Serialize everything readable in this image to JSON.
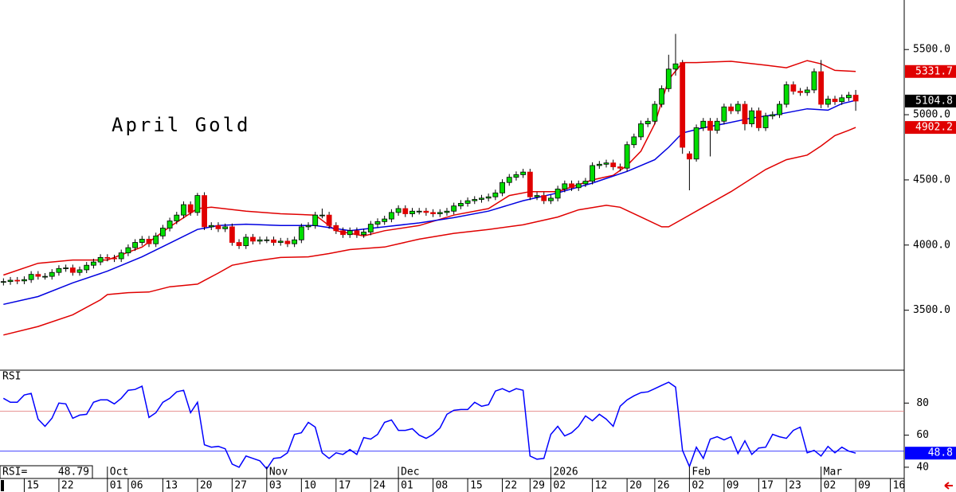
{
  "chart_data": [
    {
      "type": "candlestick",
      "title": "April Gold",
      "xlim": [
        -0.5,
        130
      ],
      "ylim": [
        3040,
        5880
      ],
      "yticks": [
        {
          "value": 3500,
          "label": "3500.0"
        },
        {
          "value": 4000,
          "label": "4000.0"
        },
        {
          "value": 4500,
          "label": "4500.0"
        },
        {
          "value": 5000,
          "label": "5000.0"
        },
        {
          "value": 5500,
          "label": "5500.0"
        }
      ],
      "up_color": "#00dd00",
      "down_color": "#e00000",
      "open": [
        3715,
        3720,
        3730,
        3725,
        3735,
        3775,
        3760,
        3760,
        3790,
        3820,
        3825,
        3790,
        3810,
        3845,
        3870,
        3905,
        3900,
        3895,
        3940,
        3980,
        4020,
        4045,
        4010,
        4070,
        4130,
        4185,
        4230,
        4310,
        4250,
        4380,
        4140,
        4150,
        4125,
        4140,
        4020,
        3995,
        4060,
        4030,
        4040,
        4040,
        4020,
        4030,
        4010,
        4040,
        4140,
        4150,
        4230,
        4230,
        4150,
        4110,
        4080,
        4110,
        4080,
        4100,
        4160,
        4180,
        4200,
        4250,
        4280,
        4240,
        4260,
        4260,
        4250,
        4240,
        4250,
        4260,
        4300,
        4320,
        4340,
        4350,
        4360,
        4370,
        4400,
        4480,
        4520,
        4540,
        4560,
        4370,
        4380,
        4340,
        4360,
        4430,
        4470,
        4440,
        4470,
        4490,
        4610,
        4620,
        4630,
        4600,
        4590,
        4770,
        4830,
        4930,
        4950,
        5080,
        5200,
        5350,
        5400,
        4700,
        4660,
        4900,
        4950,
        4880,
        4950,
        5060,
        5030,
        5080,
        4930,
        5030,
        4900,
        4990,
        5000,
        5080,
        5230,
        5180,
        5170,
        5190,
        5330,
        5080,
        5120,
        5100,
        5130,
        5150
      ],
      "high": [
        3745,
        3755,
        3755,
        3760,
        3800,
        3800,
        3785,
        3815,
        3845,
        3850,
        3850,
        3835,
        3870,
        3895,
        3930,
        3930,
        3925,
        3965,
        4005,
        4045,
        4070,
        4070,
        4095,
        4155,
        4210,
        4255,
        4335,
        4335,
        4400,
        4405,
        4175,
        4175,
        4165,
        4165,
        4045,
        4085,
        4085,
        4065,
        4065,
        4065,
        4055,
        4055,
        4065,
        4165,
        4175,
        4255,
        4280,
        4255,
        4175,
        4135,
        4135,
        4135,
        4125,
        4185,
        4205,
        4225,
        4275,
        4305,
        4305,
        4285,
        4285,
        4285,
        4275,
        4275,
        4285,
        4325,
        4345,
        4365,
        4375,
        4385,
        4395,
        4425,
        4505,
        4545,
        4565,
        4585,
        4585,
        4405,
        4405,
        4385,
        4455,
        4495,
        4495,
        4495,
        4515,
        4635,
        4645,
        4655,
        4655,
        4625,
        4795,
        4855,
        4955,
        4975,
        5105,
        5225,
        5460,
        5620,
        5420,
        4720,
        4925,
        4975,
        4975,
        4975,
        5085,
        5085,
        5105,
        5105,
        5055,
        5055,
        5015,
        5025,
        5105,
        5255,
        5255,
        5205,
        5215,
        5355,
        5420,
        5145,
        5145,
        5155,
        5175,
        5190
      ],
      "low": [
        3690,
        3695,
        3700,
        3700,
        3710,
        3735,
        3735,
        3735,
        3765,
        3795,
        3765,
        3765,
        3785,
        3820,
        3845,
        3875,
        3870,
        3870,
        3915,
        3955,
        3995,
        3985,
        3985,
        4045,
        4105,
        4160,
        4205,
        4225,
        4225,
        4115,
        4115,
        4100,
        4100,
        3995,
        3970,
        3970,
        4005,
        4005,
        4015,
        3995,
        3995,
        3985,
        3985,
        4015,
        4115,
        4125,
        4205,
        4125,
        4085,
        4055,
        4055,
        4055,
        4055,
        4075,
        4135,
        4155,
        4175,
        4225,
        4215,
        4215,
        4235,
        4225,
        4215,
        4215,
        4225,
        4235,
        4275,
        4295,
        4315,
        4325,
        4335,
        4345,
        4375,
        4455,
        4495,
        4515,
        4345,
        4345,
        4315,
        4315,
        4335,
        4405,
        4415,
        4415,
        4445,
        4465,
        4585,
        4595,
        4575,
        4565,
        4565,
        4745,
        4805,
        4905,
        4925,
        5055,
        5175,
        5300,
        4700,
        4420,
        4640,
        4875,
        4680,
        4855,
        4925,
        5005,
        5005,
        4880,
        4905,
        4875,
        4875,
        4965,
        4975,
        5055,
        5155,
        5145,
        5145,
        5165,
        5050,
        5055,
        5075,
        5075,
        5105,
        5030
      ],
      "close": [
        3720,
        3730,
        3725,
        3735,
        3775,
        3760,
        3760,
        3790,
        3820,
        3825,
        3790,
        3810,
        3845,
        3870,
        3905,
        3900,
        3895,
        3940,
        3980,
        4020,
        4045,
        4010,
        4070,
        4130,
        4185,
        4230,
        4310,
        4250,
        4380,
        4140,
        4150,
        4125,
        4140,
        4020,
        3995,
        4060,
        4030,
        4040,
        4040,
        4020,
        4030,
        4010,
        4040,
        4140,
        4150,
        4230,
        4230,
        4150,
        4110,
        4080,
        4110,
        4080,
        4100,
        4160,
        4180,
        4200,
        4250,
        4280,
        4240,
        4260,
        4260,
        4250,
        4240,
        4250,
        4260,
        4300,
        4320,
        4340,
        4350,
        4360,
        4370,
        4400,
        4480,
        4520,
        4540,
        4560,
        4370,
        4380,
        4340,
        4360,
        4430,
        4470,
        4440,
        4470,
        4490,
        4610,
        4620,
        4630,
        4600,
        4590,
        4770,
        4830,
        4930,
        4950,
        5080,
        5200,
        5350,
        5390,
        4750,
        4660,
        4900,
        4950,
        4880,
        4950,
        5060,
        5030,
        5080,
        4930,
        5030,
        4900,
        4990,
        5000,
        5080,
        5230,
        5180,
        5170,
        5190,
        5330,
        5080,
        5120,
        5100,
        5130,
        5150,
        5104.8
      ],
      "close_tag_color": "#000000",
      "bands": [
        {
          "color": "#e00000",
          "x": [
            0,
            5,
            10,
            15,
            20,
            24,
            28,
            30,
            35,
            40,
            45,
            48,
            52,
            55,
            60,
            65,
            70,
            73,
            76,
            80,
            85,
            88,
            90,
            92,
            94,
            96,
            98,
            100,
            105,
            110,
            113,
            116,
            118,
            120,
            123
          ],
          "values": [
            3770,
            3860,
            3885,
            3885,
            3985,
            4140,
            4280,
            4290,
            4260,
            4240,
            4230,
            4110,
            4070,
            4110,
            4150,
            4230,
            4280,
            4380,
            4410,
            4410,
            4500,
            4535,
            4610,
            4720,
            4930,
            5270,
            5400,
            5400,
            5410,
            5380,
            5360,
            5415,
            5390,
            5340,
            5331.7
          ]
        },
        {
          "color": "#0000e0",
          "x": [
            0,
            5,
            10,
            15,
            20,
            24,
            28,
            31,
            35,
            40,
            45,
            50,
            55,
            60,
            65,
            70,
            75,
            80,
            85,
            90,
            94,
            96,
            98,
            101,
            104,
            108,
            112,
            116,
            119,
            121,
            123
          ],
          "values": [
            3545,
            3605,
            3710,
            3800,
            3910,
            4015,
            4120,
            4150,
            4160,
            4150,
            4150,
            4110,
            4140,
            4170,
            4210,
            4260,
            4340,
            4400,
            4475,
            4565,
            4655,
            4750,
            4860,
            4900,
            4930,
            4975,
            5005,
            5045,
            5035,
            5085,
            5110
          ]
        },
        {
          "color": "#e00000",
          "x": [
            0,
            5,
            10,
            14,
            15,
            18,
            21,
            24,
            28,
            31,
            33,
            36,
            40,
            44,
            47,
            50,
            55,
            60,
            65,
            70,
            75,
            80,
            83,
            87,
            89,
            92,
            95,
            96,
            98,
            101,
            105,
            110,
            113,
            116,
            118,
            120,
            122,
            123
          ],
          "values": [
            3310,
            3375,
            3465,
            3580,
            3620,
            3635,
            3640,
            3680,
            3700,
            3785,
            3845,
            3875,
            3905,
            3910,
            3935,
            3965,
            3985,
            4045,
            4090,
            4120,
            4155,
            4215,
            4270,
            4305,
            4290,
            4215,
            4140,
            4140,
            4200,
            4290,
            4410,
            4580,
            4655,
            4690,
            4760,
            4840,
            4880,
            4902.2
          ]
        }
      ]
    },
    {
      "type": "line",
      "title": "RSI",
      "readout": "RSI=",
      "color": "#0000ff",
      "xlim": [
        -0.5,
        130
      ],
      "ylim": [
        33,
        100.5
      ],
      "yticks": [
        40,
        60,
        80
      ],
      "values": [
        83,
        80.5,
        80.5,
        85,
        86,
        70,
        65.5,
        70.5,
        80,
        79.5,
        70.5,
        72.5,
        73,
        80.5,
        82,
        82,
        79.5,
        83,
        88,
        88.5,
        90.5,
        71,
        74,
        80.5,
        83,
        87,
        88,
        74,
        80.5,
        54,
        52.5,
        53,
        51.5,
        42,
        40,
        47,
        45.5,
        44,
        39,
        45.5,
        46,
        49,
        60.5,
        61.5,
        68,
        65,
        49,
        45.5,
        49,
        48,
        51,
        48,
        58.5,
        57.5,
        60.5,
        68,
        69.5,
        63,
        63,
        64,
        60,
        58,
        60.5,
        64.5,
        73,
        75.5,
        76,
        76,
        80.5,
        78,
        79,
        87.5,
        89,
        87,
        89,
        88,
        47,
        45,
        45.5,
        60.5,
        65.5,
        59.5,
        61.5,
        65.5,
        72,
        69,
        73,
        70,
        65.5,
        78,
        82,
        84.5,
        86.5,
        87,
        89,
        91,
        93,
        90,
        50.5,
        40.5,
        52.5,
        45.5,
        57.5,
        59,
        57,
        59,
        48.5,
        56.5,
        48,
        52,
        52.5,
        60.5,
        59,
        58,
        63,
        65,
        49,
        50.5,
        47,
        53,
        49,
        52.5,
        50,
        48.79
      ],
      "last_value_label": "48.8",
      "levels": [
        {
          "value": 75,
          "color": "#e07070"
        },
        {
          "value": 50,
          "color": "#0000ff"
        }
      ],
      "xticks": [
        {
          "value": 3,
          "label": "15"
        },
        {
          "value": 8,
          "label": "22"
        },
        {
          "value": 15,
          "label": "01"
        },
        {
          "value": 18,
          "label": "06"
        },
        {
          "value": 23,
          "label": "13"
        },
        {
          "value": 28,
          "label": "20"
        },
        {
          "value": 33,
          "label": "27"
        },
        {
          "value": 38,
          "label": "03"
        },
        {
          "value": 43,
          "label": "10"
        },
        {
          "value": 48,
          "label": "17"
        },
        {
          "value": 53,
          "label": "24"
        },
        {
          "value": 57,
          "label": "01"
        },
        {
          "value": 62,
          "label": "08"
        },
        {
          "value": 67,
          "label": "15"
        },
        {
          "value": 72,
          "label": "22"
        },
        {
          "value": 76,
          "label": "29"
        },
        {
          "value": 79,
          "label": "02"
        },
        {
          "value": 85,
          "label": "12"
        },
        {
          "value": 90,
          "label": "20"
        },
        {
          "value": 94,
          "label": "26"
        },
        {
          "value": 99,
          "label": "02"
        },
        {
          "value": 104,
          "label": "09"
        },
        {
          "value": 109,
          "label": "17"
        },
        {
          "value": 113,
          "label": "23"
        },
        {
          "value": 118,
          "label": "02"
        },
        {
          "value": 123,
          "label": "09"
        },
        {
          "value": 128,
          "label": "16"
        }
      ],
      "month_ticks": [
        {
          "value": 15,
          "label": "Oct"
        },
        {
          "value": 38,
          "label": "Nov"
        },
        {
          "value": 57,
          "label": "Dec"
        },
        {
          "value": 79,
          "label": "2026"
        },
        {
          "value": 99,
          "label": "Feb"
        },
        {
          "value": 118,
          "label": "Mar"
        }
      ]
    }
  ]
}
